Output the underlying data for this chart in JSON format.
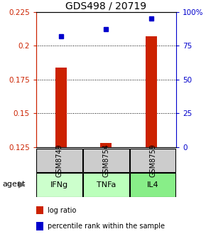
{
  "title": "GDS498 / 20719",
  "samples": [
    "GSM8749",
    "GSM8754",
    "GSM8759"
  ],
  "agents": [
    "IFNg",
    "TNFa",
    "IL4"
  ],
  "x_positions": [
    1,
    2,
    3
  ],
  "log_ratios": [
    0.184,
    0.128,
    0.207
  ],
  "percentile_ranks": [
    82,
    87,
    95
  ],
  "left_ylim": [
    0.125,
    0.225
  ],
  "right_ylim": [
    0,
    100
  ],
  "left_yticks": [
    0.125,
    0.15,
    0.175,
    0.2,
    0.225
  ],
  "right_yticks": [
    0,
    25,
    50,
    75,
    100
  ],
  "right_yticklabels": [
    "0",
    "25",
    "50",
    "75",
    "100%"
  ],
  "bar_color": "#cc2200",
  "dot_color": "#0000cc",
  "sample_box_color": "#cccccc",
  "agent_colors": [
    "#ccffcc",
    "#bbffbb",
    "#88ee88"
  ],
  "legend_bar_label": "log ratio",
  "legend_dot_label": "percentile rank within the sample",
  "agent_label": "agent",
  "background_color": "#ffffff",
  "bar_width": 0.25,
  "title_fontsize": 10,
  "tick_fontsize": 7.5,
  "table_fontsize": 7,
  "agent_fontsize": 8,
  "legend_fontsize": 7
}
